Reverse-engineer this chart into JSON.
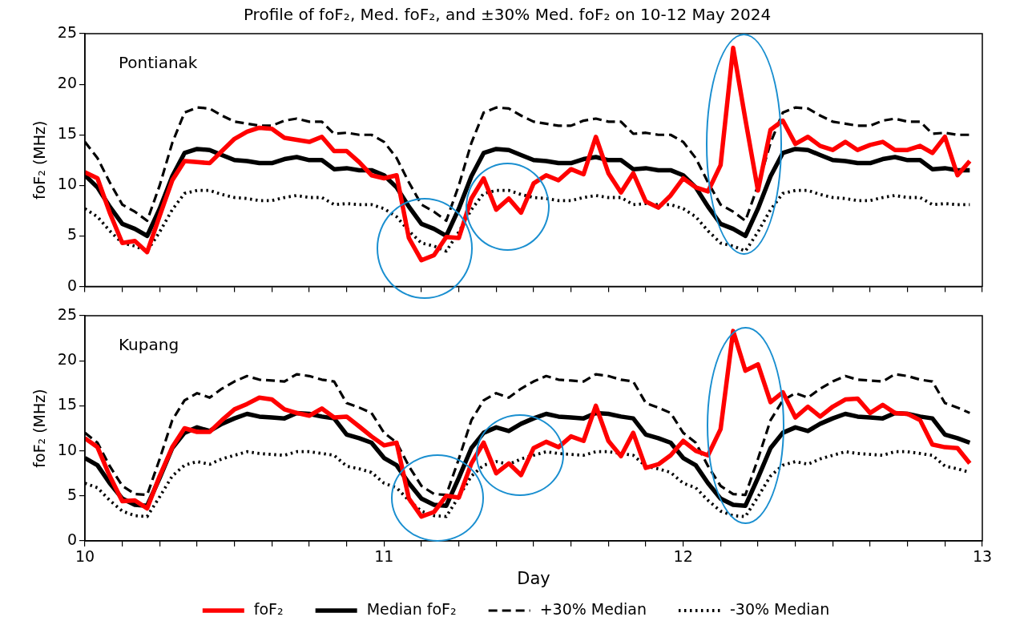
{
  "chart_data": [
    {
      "type": "line",
      "title": "Profile of foF₂, Med. foF₂, and ±30% Med. foF₂ on 10-12 May 2024",
      "ylabel": "foF₂ (MHz)",
      "annotations": [
        "Pontianak"
      ],
      "x": [
        10,
        10.042,
        10.083,
        10.125,
        10.167,
        10.208,
        10.25,
        10.292,
        10.333,
        10.375,
        10.417,
        10.458,
        10.5,
        10.542,
        10.583,
        10.625,
        10.667,
        10.708,
        10.75,
        10.792,
        10.833,
        10.875,
        10.917,
        10.958,
        11,
        11.042,
        11.083,
        11.125,
        11.167,
        11.208,
        11.25,
        11.292,
        11.333,
        11.375,
        11.417,
        11.458,
        11.5,
        11.542,
        11.583,
        11.625,
        11.667,
        11.708,
        11.75,
        11.792,
        11.833,
        11.875,
        11.917,
        11.958,
        12,
        12.042,
        12.083,
        12.125,
        12.167,
        12.208,
        12.25,
        12.292,
        12.333,
        12.375,
        12.417,
        12.458,
        12.5,
        12.542,
        12.583,
        12.625,
        12.667,
        12.708,
        12.75,
        12.792,
        12.833,
        12.875,
        12.917,
        12.958
      ],
      "series": [
        {
          "color": "#ff0000",
          "line_style": "solid",
          "values": [
            11.3,
            10.7,
            7.3,
            4.3,
            4.5,
            3.4,
            7.0,
            10.5,
            12.4,
            12.3,
            12.2,
            13.4,
            14.6,
            15.3,
            15.7,
            15.6,
            14.7,
            14.5,
            14.3,
            14.8,
            13.4,
            13.4,
            12.3,
            11.0,
            10.7,
            11.0,
            4.8,
            2.6,
            3.1,
            4.9,
            4.8,
            8.7,
            10.7,
            7.6,
            8.7,
            7.3,
            10.2,
            11.0,
            10.5,
            11.6,
            11.1,
            14.8,
            11.2,
            9.3,
            11.2,
            8.4,
            7.8,
            9.0,
            10.7,
            9.8,
            9.4,
            12.0,
            23.6,
            16.5,
            9.5,
            15.5,
            16.4,
            14.1,
            14.8,
            13.9,
            13.5,
            14.3,
            13.5,
            14.0,
            14.3,
            13.5,
            13.5,
            13.9,
            13.2,
            14.8,
            11.0,
            12.4
          ]
        },
        {
          "color": "#000000",
          "line_style": "solid",
          "values": [
            11.0,
            9.8,
            7.9,
            6.2,
            5.7,
            5.0,
            7.7,
            10.9,
            13.2,
            13.6,
            13.5,
            13.0,
            12.5,
            12.4,
            12.2,
            12.2,
            12.6,
            12.8,
            12.5,
            12.5,
            11.6,
            11.7,
            11.5,
            11.5,
            11.0,
            9.8,
            7.9,
            6.2,
            5.7,
            5.0,
            7.7,
            10.9,
            13.2,
            13.6,
            13.5,
            13.0,
            12.5,
            12.4,
            12.2,
            12.2,
            12.6,
            12.8,
            12.5,
            12.5,
            11.6,
            11.7,
            11.5,
            11.5,
            11.0,
            9.8,
            7.9,
            6.2,
            5.7,
            5.0,
            7.7,
            10.9,
            13.2,
            13.6,
            13.5,
            13.0,
            12.5,
            12.4,
            12.2,
            12.2,
            12.6,
            12.8,
            12.5,
            12.5,
            11.6,
            11.7,
            11.5,
            11.5
          ]
        },
        {
          "color": "#000000",
          "line_style": "dashed",
          "values": [
            14.3,
            12.7,
            10.3,
            8.1,
            7.4,
            6.5,
            10.0,
            14.2,
            17.2,
            17.7,
            17.6,
            16.9,
            16.3,
            16.1,
            15.9,
            15.9,
            16.4,
            16.6,
            16.3,
            16.3,
            15.1,
            15.2,
            15.0,
            15.0,
            14.3,
            12.7,
            10.3,
            8.1,
            7.4,
            6.5,
            10.0,
            14.2,
            17.2,
            17.7,
            17.6,
            16.9,
            16.3,
            16.1,
            15.9,
            15.9,
            16.4,
            16.6,
            16.3,
            16.3,
            15.1,
            15.2,
            15.0,
            15.0,
            14.3,
            12.7,
            10.3,
            8.1,
            7.4,
            6.5,
            10.0,
            14.2,
            17.2,
            17.7,
            17.6,
            16.9,
            16.3,
            16.1,
            15.9,
            15.9,
            16.4,
            16.6,
            16.3,
            16.3,
            15.1,
            15.2,
            15.0,
            15.0
          ]
        },
        {
          "color": "#000000",
          "line_style": "dotted",
          "values": [
            7.7,
            6.9,
            5.5,
            4.3,
            4.0,
            3.5,
            5.4,
            7.6,
            9.2,
            9.5,
            9.5,
            9.1,
            8.8,
            8.7,
            8.5,
            8.5,
            8.8,
            9.0,
            8.8,
            8.8,
            8.1,
            8.2,
            8.1,
            8.1,
            7.7,
            6.9,
            5.5,
            4.3,
            4.0,
            3.5,
            5.4,
            7.6,
            9.2,
            9.5,
            9.5,
            9.1,
            8.8,
            8.7,
            8.5,
            8.5,
            8.8,
            9.0,
            8.8,
            8.8,
            8.1,
            8.2,
            8.1,
            8.1,
            7.7,
            6.9,
            5.5,
            4.3,
            4.0,
            3.5,
            5.4,
            7.6,
            9.2,
            9.5,
            9.5,
            9.1,
            8.8,
            8.7,
            8.5,
            8.5,
            8.8,
            9.0,
            8.8,
            8.8,
            8.1,
            8.2,
            8.1,
            8.1
          ]
        }
      ],
      "xlim": [
        10,
        13
      ],
      "xticks": [
        10,
        {
          "value": 10.125,
          "label": null
        },
        {
          "value": 10.25,
          "label": null
        },
        {
          "value": 10.375,
          "label": null
        },
        {
          "value": 10.5,
          "label": null
        },
        {
          "value": 10.625,
          "label": null
        },
        {
          "value": 10.75,
          "label": null
        },
        {
          "value": 10.875,
          "label": null
        },
        11,
        {
          "value": 11.125,
          "label": null
        },
        {
          "value": 11.25,
          "label": null
        },
        {
          "value": 11.375,
          "label": null
        },
        {
          "value": 11.5,
          "label": null
        },
        {
          "value": 11.625,
          "label": null
        },
        {
          "value": 11.75,
          "label": null
        },
        {
          "value": 11.875,
          "label": null
        },
        12,
        {
          "value": 12.125,
          "label": null
        },
        {
          "value": 12.25,
          "label": null
        },
        {
          "value": 12.375,
          "label": null
        },
        {
          "value": 12.5,
          "label": null
        },
        {
          "value": 12.625,
          "label": null
        },
        {
          "value": 12.75,
          "label": null
        },
        {
          "value": 12.875,
          "label": null
        },
        13
      ],
      "ylim": [
        0,
        25
      ],
      "yticks": [
        0,
        5,
        10,
        15,
        20,
        25
      ],
      "tick_labels": "y",
      "marker": "none",
      "legend": false
    },
    {
      "type": "line",
      "xlabel": "Day",
      "ylabel": "foF₂ (MHz)",
      "annotations": [
        "Kupang"
      ],
      "x": [
        10,
        10.042,
        10.083,
        10.125,
        10.167,
        10.208,
        10.25,
        10.292,
        10.333,
        10.375,
        10.417,
        10.458,
        10.5,
        10.542,
        10.583,
        10.625,
        10.667,
        10.708,
        10.75,
        10.792,
        10.833,
        10.875,
        10.917,
        10.958,
        11,
        11.042,
        11.083,
        11.125,
        11.167,
        11.208,
        11.25,
        11.292,
        11.333,
        11.375,
        11.417,
        11.458,
        11.5,
        11.542,
        11.583,
        11.625,
        11.667,
        11.708,
        11.75,
        11.792,
        11.833,
        11.875,
        11.917,
        11.958,
        12,
        12.042,
        12.083,
        12.125,
        12.167,
        12.208,
        12.25,
        12.292,
        12.333,
        12.375,
        12.417,
        12.458,
        12.5,
        12.542,
        12.583,
        12.625,
        12.667,
        12.708,
        12.75,
        12.792,
        12.833,
        12.875,
        12.917,
        12.958
      ],
      "series": [
        {
          "name": "foF₂",
          "color": "#ff0000",
          "line_style": "solid",
          "values": [
            11.4,
            10.4,
            7.2,
            4.4,
            4.5,
            3.6,
            7.2,
            10.4,
            12.5,
            12.1,
            12.1,
            13.4,
            14.6,
            15.2,
            15.9,
            15.7,
            14.6,
            14.2,
            13.9,
            14.7,
            13.7,
            13.8,
            12.7,
            11.6,
            10.6,
            10.9,
            4.7,
            2.7,
            3.2,
            5.0,
            4.8,
            8.6,
            10.9,
            7.5,
            8.6,
            7.3,
            10.3,
            11.0,
            10.4,
            11.6,
            11.1,
            15.0,
            11.1,
            9.4,
            12.0,
            8.1,
            8.5,
            9.5,
            11.1,
            10.0,
            9.5,
            12.4,
            23.3,
            18.9,
            19.6,
            15.4,
            16.5,
            13.7,
            14.9,
            13.8,
            14.9,
            15.7,
            15.8,
            14.2,
            15.1,
            14.2,
            14.1,
            13.4,
            10.7,
            10.4,
            10.3,
            8.6
          ]
        },
        {
          "name": "Median foF₂",
          "color": "#000000",
          "line_style": "solid",
          "values": [
            9.2,
            8.4,
            6.4,
            4.7,
            4.0,
            3.9,
            7.0,
            10.3,
            12.0,
            12.6,
            12.2,
            13.0,
            13.6,
            14.1,
            13.8,
            13.7,
            13.6,
            14.2,
            14.1,
            13.8,
            13.6,
            11.8,
            11.4,
            10.9,
            9.2,
            8.4,
            6.4,
            4.7,
            4.0,
            3.9,
            7.0,
            10.3,
            12.0,
            12.6,
            12.2,
            13.0,
            13.6,
            14.1,
            13.8,
            13.7,
            13.6,
            14.2,
            14.1,
            13.8,
            13.6,
            11.8,
            11.4,
            10.9,
            9.2,
            8.4,
            6.4,
            4.7,
            4.0,
            3.9,
            7.0,
            10.3,
            12.0,
            12.6,
            12.2,
            13.0,
            13.6,
            14.1,
            13.8,
            13.7,
            13.6,
            14.2,
            14.1,
            13.8,
            13.6,
            11.8,
            11.4,
            10.9
          ]
        },
        {
          "name": "+30% Median",
          "color": "#000000",
          "line_style": "dashed",
          "values": [
            12.0,
            10.9,
            8.3,
            6.1,
            5.2,
            5.1,
            9.1,
            13.4,
            15.6,
            16.4,
            15.9,
            16.9,
            17.7,
            18.3,
            17.9,
            17.8,
            17.7,
            18.5,
            18.3,
            17.9,
            17.7,
            15.3,
            14.8,
            14.2,
            12.0,
            10.9,
            8.3,
            6.1,
            5.2,
            5.1,
            9.1,
            13.4,
            15.6,
            16.4,
            15.9,
            16.9,
            17.7,
            18.3,
            17.9,
            17.8,
            17.7,
            18.5,
            18.3,
            17.9,
            17.7,
            15.3,
            14.8,
            14.2,
            12.0,
            10.9,
            8.3,
            6.1,
            5.2,
            5.1,
            9.1,
            13.4,
            15.6,
            16.4,
            15.9,
            16.9,
            17.7,
            18.3,
            17.9,
            17.8,
            17.7,
            18.5,
            18.3,
            17.9,
            17.7,
            15.3,
            14.8,
            14.2
          ]
        },
        {
          "name": "-30% Median",
          "color": "#000000",
          "line_style": "dotted",
          "values": [
            6.4,
            5.9,
            4.5,
            3.3,
            2.8,
            2.7,
            4.9,
            7.2,
            8.4,
            8.8,
            8.5,
            9.1,
            9.5,
            9.9,
            9.7,
            9.6,
            9.5,
            9.9,
            9.9,
            9.7,
            9.5,
            8.3,
            8.0,
            7.6,
            6.4,
            5.9,
            4.5,
            3.3,
            2.8,
            2.7,
            4.9,
            7.2,
            8.4,
            8.8,
            8.5,
            9.1,
            9.5,
            9.9,
            9.7,
            9.6,
            9.5,
            9.9,
            9.9,
            9.7,
            9.5,
            8.3,
            8.0,
            7.6,
            6.4,
            5.9,
            4.5,
            3.3,
            2.8,
            2.7,
            4.9,
            7.2,
            8.4,
            8.8,
            8.5,
            9.1,
            9.5,
            9.9,
            9.7,
            9.6,
            9.5,
            9.9,
            9.9,
            9.7,
            9.5,
            8.3,
            8.0,
            7.6
          ]
        }
      ],
      "xlim": [
        10,
        13
      ],
      "xticks": [
        10,
        {
          "value": 10.125,
          "label": null
        },
        {
          "value": 10.25,
          "label": null
        },
        {
          "value": 10.375,
          "label": null
        },
        {
          "value": 10.5,
          "label": null
        },
        {
          "value": 10.625,
          "label": null
        },
        {
          "value": 10.75,
          "label": null
        },
        {
          "value": 10.875,
          "label": null
        },
        11,
        {
          "value": 11.125,
          "label": null
        },
        {
          "value": 11.25,
          "label": null
        },
        {
          "value": 11.375,
          "label": null
        },
        {
          "value": 11.5,
          "label": null
        },
        {
          "value": 11.625,
          "label": null
        },
        {
          "value": 11.75,
          "label": null
        },
        {
          "value": 11.875,
          "label": null
        },
        12,
        {
          "value": 12.125,
          "label": null
        },
        {
          "value": 12.25,
          "label": null
        },
        {
          "value": 12.375,
          "label": null
        },
        {
          "value": 12.5,
          "label": null
        },
        {
          "value": 12.625,
          "label": null
        },
        {
          "value": 12.75,
          "label": null
        },
        {
          "value": 12.875,
          "label": null
        },
        13
      ],
      "ylim": [
        0,
        25
      ],
      "yticks": [
        0,
        5,
        10,
        15,
        20,
        25
      ],
      "marker": "none",
      "legend": "bottom"
    }
  ]
}
